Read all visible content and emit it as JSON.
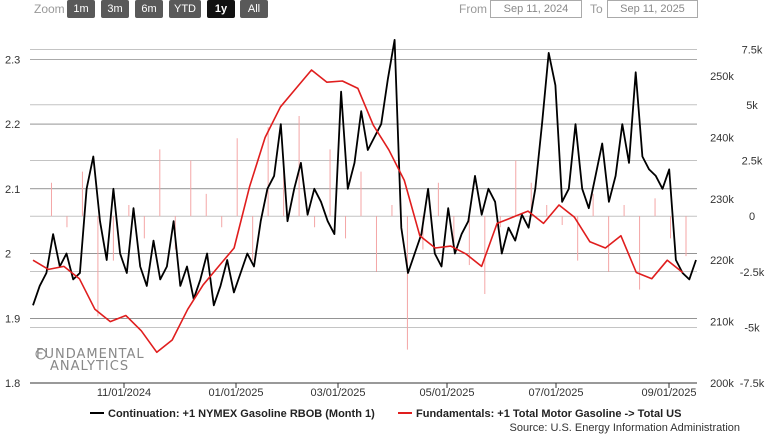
{
  "toolbar": {
    "zoom_label": "Zoom",
    "buttons": [
      "1m",
      "3m",
      "6m",
      "YTD",
      "1y",
      "All"
    ],
    "active": "1y",
    "from_label": "From",
    "from_value": "Sep 11, 2024",
    "to_label": "To",
    "to_value": "Sep 11, 2025"
  },
  "watermark": {
    "line1": "FUNDAMENTAL",
    "line2": "ANALYTICS"
  },
  "source": "Source: U.S. Energy Information Administration",
  "chart_data": {
    "type": "line",
    "x_ticks": [
      "11/01/2024",
      "01/01/2025",
      "03/01/2025",
      "05/01/2025",
      "07/01/2025",
      "09/01/2025"
    ],
    "y_left": {
      "ticks": [
        "1.8",
        "1.9",
        "2",
        "2.1",
        "2.2",
        "2.3"
      ],
      "range": [
        1.8,
        2.35
      ]
    },
    "y_right_outer": {
      "ticks": [
        "-7.5k",
        "-5k",
        "-2.5k",
        "0",
        "2.5k",
        "5k",
        "7.5k"
      ],
      "range": [
        -7.5,
        8.5
      ]
    },
    "y_right_inner": {
      "ticks": [
        "200k",
        "210k",
        "220k",
        "230k",
        "240k",
        "250k"
      ],
      "range": [
        200,
        258
      ]
    },
    "legend_position": "bottom",
    "series": [
      {
        "name": "Continuation: +1 NYMEX Gasoline RBOB (Month 1)",
        "color": "#000000",
        "axis": "left",
        "values": [
          1.92,
          1.95,
          1.97,
          2.03,
          1.98,
          2.0,
          1.96,
          1.97,
          2.1,
          2.15,
          2.05,
          1.99,
          2.1,
          2.0,
          1.97,
          2.07,
          1.98,
          1.95,
          2.02,
          1.96,
          1.98,
          2.05,
          1.95,
          1.98,
          1.93,
          1.96,
          2.0,
          1.92,
          1.95,
          1.99,
          1.94,
          1.97,
          2.0,
          1.98,
          2.05,
          2.1,
          2.12,
          2.2,
          2.05,
          2.1,
          2.14,
          2.06,
          2.1,
          2.08,
          2.05,
          2.03,
          2.25,
          2.1,
          2.14,
          2.22,
          2.16,
          2.18,
          2.2,
          2.27,
          2.33,
          2.04,
          1.97,
          2.0,
          2.03,
          2.1,
          2.0,
          1.98,
          2.07,
          2.0,
          2.03,
          2.05,
          2.12,
          2.06,
          2.1,
          2.08,
          2.0,
          2.04,
          2.02,
          2.06,
          2.04,
          2.1,
          2.2,
          2.31,
          2.26,
          2.08,
          2.1,
          2.2,
          2.1,
          2.07,
          2.12,
          2.17,
          2.08,
          2.12,
          2.2,
          2.14,
          2.28,
          2.15,
          2.13,
          2.12,
          2.1,
          2.13,
          1.99,
          1.97,
          1.96,
          1.99
        ]
      },
      {
        "name": "Fundamentals: +1 Total Motor Gasoline -> Total US",
        "color": "#e01e1e",
        "axis": "right_inner",
        "values": [
          220,
          218.5,
          219,
          217,
          212,
          210,
          211,
          208.5,
          205,
          207,
          212,
          216,
          219,
          222,
          232,
          240,
          245,
          248,
          251,
          249,
          249.2,
          248,
          242,
          238,
          233,
          224,
          222,
          222.3,
          221,
          219,
          226,
          227,
          228,
          226,
          229,
          227,
          223,
          222,
          224,
          218,
          217,
          220,
          218
        ]
      }
    ],
    "bars": {
      "name": "",
      "color": "#f4a6a6",
      "axis": "right_outer",
      "values": [
        0,
        1.5,
        -0.5,
        2,
        -4.5,
        -2,
        0.5,
        -1,
        3,
        -1.5,
        2.5,
        1,
        -0.5,
        3.5,
        -2,
        4,
        2.5,
        4.5,
        -0.5,
        3,
        -1,
        2,
        -2.5,
        0.5,
        -6,
        -1.5,
        1.5,
        -1.2,
        -2.2,
        -3.5,
        -0.5,
        2.5,
        1.5,
        0.5,
        -0.4,
        -2,
        1,
        -2.5,
        0.5,
        -3.3,
        0.8,
        -1,
        -1.8
      ]
    }
  }
}
